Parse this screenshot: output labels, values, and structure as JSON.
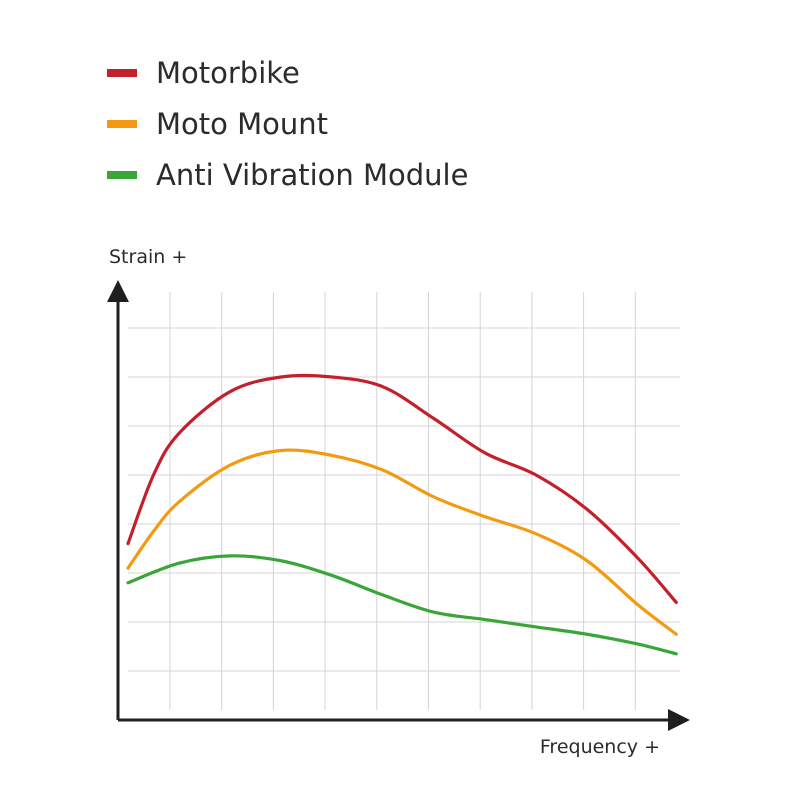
{
  "chart_data": {
    "type": "line",
    "title": "",
    "xlabel": "Frequency +",
    "ylabel": "Strain +",
    "xlim": [
      0,
      11
    ],
    "ylim": [
      0,
      8
    ],
    "grid": true,
    "legend_position": "top-left",
    "series": [
      {
        "name": "Motorbike",
        "color": "#c4202c",
        "points": [
          [
            0,
            3.6
          ],
          [
            0.5,
            5.0
          ],
          [
            1,
            5.85
          ],
          [
            2,
            6.7
          ],
          [
            3,
            7.0
          ],
          [
            4,
            7.0
          ],
          [
            5,
            6.8
          ],
          [
            6,
            6.15
          ],
          [
            7,
            5.45
          ],
          [
            8,
            5.0
          ],
          [
            9,
            4.3
          ],
          [
            10,
            3.3
          ],
          [
            10.75,
            2.4
          ]
        ]
      },
      {
        "name": "Moto Mount",
        "color": "#f39a12",
        "points": [
          [
            0,
            3.1
          ],
          [
            0.5,
            3.85
          ],
          [
            1,
            4.45
          ],
          [
            2,
            5.2
          ],
          [
            3,
            5.5
          ],
          [
            4,
            5.4
          ],
          [
            5,
            5.1
          ],
          [
            6,
            4.55
          ],
          [
            7,
            4.15
          ],
          [
            8,
            3.8
          ],
          [
            9,
            3.25
          ],
          [
            10,
            2.35
          ],
          [
            10.75,
            1.75
          ]
        ]
      },
      {
        "name": "Anti Vibration Module",
        "color": "#3aa63a",
        "points": [
          [
            0,
            2.8
          ],
          [
            1,
            3.2
          ],
          [
            2,
            3.35
          ],
          [
            3,
            3.25
          ],
          [
            4,
            2.95
          ],
          [
            5,
            2.55
          ],
          [
            6,
            2.2
          ],
          [
            7,
            2.05
          ],
          [
            8,
            1.9
          ],
          [
            9,
            1.75
          ],
          [
            10,
            1.55
          ],
          [
            10.75,
            1.35
          ]
        ]
      }
    ]
  }
}
